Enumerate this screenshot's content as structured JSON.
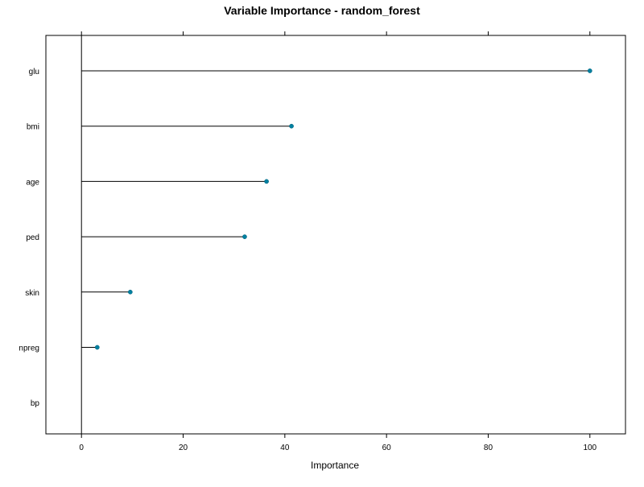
{
  "chart_data": {
    "type": "lollipop",
    "title": "Variable Importance - random_forest",
    "xlabel": "Importance",
    "ylabel": "",
    "xlim": [
      -7,
      107
    ],
    "x_ticks": [
      0,
      20,
      40,
      60,
      80,
      100
    ],
    "x_tick_labels": [
      "0",
      "20",
      "40",
      "60",
      "80",
      "100"
    ],
    "categories": [
      "glu",
      "bmi",
      "age",
      "ped",
      "skin",
      "npreg",
      "bp"
    ],
    "values": [
      100,
      41.3,
      36.4,
      32.1,
      9.6,
      3.1,
      0
    ],
    "grid": false,
    "reference_line_x": 0,
    "colors": {
      "point": "#0080a0",
      "stem": "#000000",
      "axis": "#000000"
    }
  }
}
